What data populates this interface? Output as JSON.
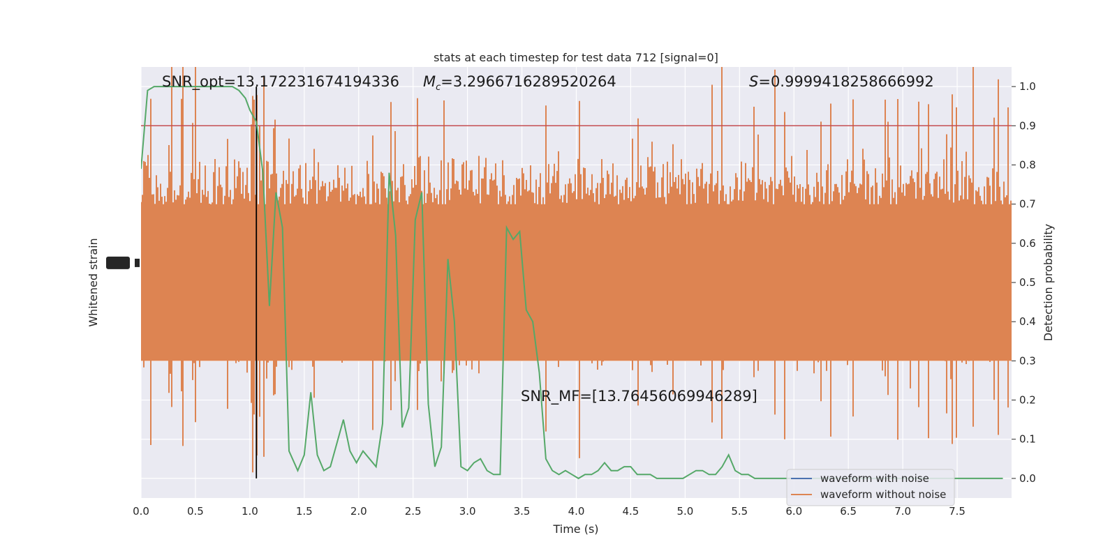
{
  "chart_data": {
    "type": "line",
    "title": "stats at each timestep for test data 712 [signal=0]",
    "xlabel": "Time (s)",
    "ylabel_left": "Whitened strain",
    "ylabel_right": "Detection probability",
    "xlim": [
      0,
      8
    ],
    "ylim_right": [
      -0.05,
      1.05
    ],
    "x_ticks": [
      "0.0",
      "0.5",
      "1.0",
      "1.5",
      "2.0",
      "2.5",
      "3.0",
      "3.5",
      "4.0",
      "4.5",
      "5.0",
      "5.5",
      "6.0",
      "6.5",
      "7.0",
      "7.5"
    ],
    "y_ticks_right": [
      "0.0",
      "0.1",
      "0.2",
      "0.3",
      "0.4",
      "0.5",
      "0.6",
      "0.7",
      "0.8",
      "0.9",
      "1.0"
    ],
    "grid": true,
    "threshold": 0.9,
    "marker_time": 1.06,
    "annotations": {
      "snr_opt": "SNR_opt=13.172231674194336",
      "mc_symbol": "M",
      "mc_sub": "c",
      "mc_value": "=3.2966716289520264",
      "s_symbol": "S",
      "s_value": "=0.9999418258666992",
      "snr_mf": "SNR_MF=[13.76456069946289]"
    },
    "legend": {
      "position": "lower-right",
      "entries": [
        "waveform with noise",
        "waveform without noise"
      ]
    },
    "colors": {
      "noise_band": "#dd8452",
      "probability": "#55a868",
      "threshold": "#c44e52",
      "marker": "#000000",
      "with_noise": "#4c72b0",
      "without_noise": "#dd8452",
      "background": "#eaeaf2"
    },
    "series": [
      {
        "name": "Detection probability",
        "x": [
          0.0,
          0.06,
          0.12,
          0.18,
          0.24,
          0.3,
          0.36,
          0.42,
          0.48,
          0.54,
          0.6,
          0.66,
          0.72,
          0.78,
          0.84,
          0.9,
          0.96,
          1.0,
          1.06,
          1.12,
          1.18,
          1.24,
          1.3,
          1.36,
          1.44,
          1.5,
          1.56,
          1.62,
          1.68,
          1.74,
          1.8,
          1.86,
          1.92,
          1.98,
          2.04,
          2.1,
          2.16,
          2.22,
          2.28,
          2.34,
          2.4,
          2.46,
          2.52,
          2.58,
          2.64,
          2.7,
          2.76,
          2.82,
          2.88,
          2.94,
          3.0,
          3.06,
          3.12,
          3.18,
          3.24,
          3.3,
          3.36,
          3.42,
          3.48,
          3.54,
          3.6,
          3.66,
          3.72,
          3.78,
          3.84,
          3.9,
          3.96,
          4.02,
          4.08,
          4.14,
          4.2,
          4.26,
          4.32,
          4.38,
          4.44,
          4.5,
          4.56,
          4.62,
          4.68,
          4.74,
          4.8,
          4.86,
          4.92,
          4.98,
          5.04,
          5.1,
          5.16,
          5.22,
          5.28,
          5.34,
          5.4,
          5.46,
          5.52,
          5.58,
          5.64,
          5.7,
          5.76,
          5.82,
          5.88,
          5.94,
          6.0,
          6.06,
          6.12,
          6.18,
          6.24,
          6.3,
          6.36,
          6.42,
          6.48,
          6.54,
          6.6,
          6.66,
          6.72,
          6.78,
          6.84,
          6.9,
          6.96,
          7.02,
          7.08,
          7.14,
          7.2,
          7.26,
          7.32,
          7.38,
          7.44,
          7.5,
          7.56,
          7.62,
          7.68,
          7.74,
          7.8,
          7.86,
          7.92
        ],
        "y": [
          0.79,
          0.99,
          1.0,
          1.0,
          1.0,
          1.0,
          1.0,
          1.0,
          1.0,
          1.0,
          1.0,
          1.0,
          1.0,
          1.0,
          1.0,
          0.99,
          0.97,
          0.94,
          0.91,
          0.78,
          0.44,
          0.73,
          0.64,
          0.07,
          0.02,
          0.06,
          0.22,
          0.06,
          0.02,
          0.03,
          0.09,
          0.15,
          0.07,
          0.04,
          0.07,
          0.05,
          0.03,
          0.14,
          0.78,
          0.62,
          0.13,
          0.18,
          0.66,
          0.73,
          0.19,
          0.03,
          0.08,
          0.56,
          0.4,
          0.03,
          0.02,
          0.04,
          0.05,
          0.02,
          0.01,
          0.01,
          0.64,
          0.61,
          0.63,
          0.43,
          0.4,
          0.27,
          0.05,
          0.02,
          0.01,
          0.02,
          0.01,
          0.0,
          0.01,
          0.01,
          0.02,
          0.04,
          0.02,
          0.02,
          0.03,
          0.03,
          0.01,
          0.01,
          0.01,
          0.0,
          0.0,
          0.0,
          0.0,
          0.0,
          0.01,
          0.02,
          0.02,
          0.01,
          0.01,
          0.03,
          0.06,
          0.02,
          0.01,
          0.01,
          0.0,
          0.0,
          0.0,
          0.0,
          0.0,
          0.0,
          0.0,
          0.0,
          0.0,
          0.0,
          0.0,
          0.0,
          0.0,
          0.0,
          0.0,
          0.0,
          0.0,
          0.0,
          0.0,
          0.0,
          0.0,
          0.0,
          0.0,
          0.0,
          0.0,
          0.0,
          0.0,
          0.0,
          0.0,
          0.0,
          0.0,
          0.0,
          0.0,
          0.0,
          0.0,
          0.0,
          0.0,
          0.0,
          0.0
        ]
      }
    ]
  }
}
